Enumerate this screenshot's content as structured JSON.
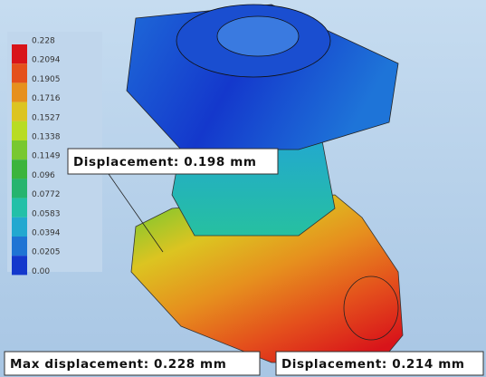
{
  "legend": {
    "labels": [
      "0.228",
      "0.2094",
      "0.1905",
      "0.1716",
      "0.1527",
      "0.1338",
      "0.1149",
      "0.096",
      "0.0772",
      "0.0583",
      "0.0394",
      "0.0205",
      "0.00"
    ],
    "colors": [
      "#d8141a",
      "#e4501c",
      "#e6901e",
      "#dcc421",
      "#b8dc24",
      "#78c830",
      "#3cb43c",
      "#26b46e",
      "#22c0a8",
      "#22a8d0",
      "#1f74d4",
      "#1438cc"
    ]
  },
  "callouts": [
    {
      "text": "Displacement: 0.198 mm"
    },
    {
      "text": "Max displacement: 0.228 mm"
    },
    {
      "text": "Displacement: 0.214 mm"
    }
  ]
}
